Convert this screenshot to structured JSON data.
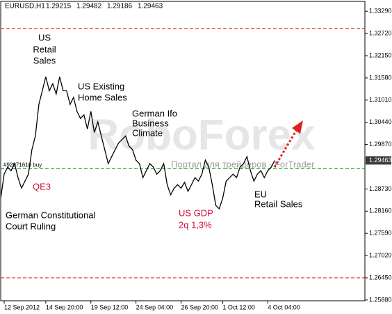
{
  "chart_data": {
    "type": "line",
    "title": "EURUSD,H1",
    "ohlc": [
      1.29215,
      1.29482,
      1.29186,
      1.29463
    ],
    "series": [
      {
        "color": "#000000",
        "x": [
          0,
          1,
          2,
          3,
          4,
          5,
          6,
          7,
          8,
          9,
          10,
          11,
          12,
          13,
          14,
          15,
          16,
          17,
          18,
          19,
          20,
          21,
          22,
          23,
          24,
          25,
          26,
          27,
          28,
          29,
          30,
          31,
          32,
          33,
          34,
          35,
          36,
          37,
          38,
          39,
          40,
          41,
          42,
          43,
          44,
          45,
          46,
          47,
          48,
          49,
          50,
          51,
          52,
          53,
          54,
          55,
          56,
          57,
          58,
          59,
          60,
          61,
          62,
          63,
          64,
          65,
          66,
          67,
          68,
          69,
          70,
          71,
          72,
          73,
          74,
          75,
          76,
          77,
          78,
          79
        ],
        "values": [
          1.2849,
          1.2911,
          1.2929,
          1.292,
          1.2938,
          1.2902,
          1.2875,
          1.2893,
          1.2911,
          1.2974,
          1.3009,
          1.309,
          1.3125,
          1.3161,
          1.3125,
          1.3143,
          1.3117,
          1.3161,
          1.3125,
          1.3125,
          1.309,
          1.3108,
          1.3072,
          1.3054,
          1.3063,
          1.3027,
          1.3072,
          1.3018,
          1.3045,
          1.3009,
          1.2974,
          1.2938,
          1.2956,
          1.2974,
          1.2991,
          1.3,
          1.3009,
          1.2983,
          1.2974,
          1.2947,
          1.2938,
          1.2902,
          1.292,
          1.2938,
          1.2929,
          1.2911,
          1.292,
          1.2938,
          1.2884,
          1.2858,
          1.2875,
          1.2884,
          1.2875,
          1.289,
          1.2867,
          1.2884,
          1.2902,
          1.2893,
          1.2911,
          1.2947,
          1.2929,
          1.2884,
          1.2831,
          1.2822,
          1.2849,
          1.2893,
          1.2902,
          1.2911,
          1.2902,
          1.2929,
          1.2938,
          1.2956,
          1.292,
          1.2893,
          1.2911,
          1.292,
          1.2902,
          1.292,
          1.2929,
          1.2946
        ]
      }
    ],
    "xlim": [
      0,
      105
    ],
    "xticks": [
      {
        "value": 1,
        "label": "12 Sep 2012"
      },
      {
        "value": 13,
        "label": "14 Sep 20:00"
      },
      {
        "value": 26,
        "label": "19 Sep 12:00"
      },
      {
        "value": 39,
        "label": "24 Sep 04:00"
      },
      {
        "value": 52,
        "label": "26 Sep 20:00"
      },
      {
        "value": 64,
        "label": "1 Oct 12:00"
      },
      {
        "value": 77,
        "label": "4 Oct 04:00"
      }
    ],
    "ylim": [
      1.2586,
      1.3358
    ],
    "yticks": [
      {
        "value": 1.3329,
        "label": "1.33290"
      },
      {
        "value": 1.3272,
        "label": "1.32720"
      },
      {
        "value": 1.3215,
        "label": "1.32150"
      },
      {
        "value": 1.3158,
        "label": "1.31580"
      },
      {
        "value": 1.3101,
        "label": "1.31010"
      },
      {
        "value": 1.3044,
        "label": "1.30440"
      },
      {
        "value": 1.2987,
        "label": "1.29870"
      },
      {
        "value": 1.2873,
        "label": "1.28730"
      },
      {
        "value": 1.2816,
        "label": "1.28160"
      },
      {
        "value": 1.2759,
        "label": "1.27590"
      },
      {
        "value": 1.2702,
        "label": "1.27020"
      },
      {
        "value": 1.2645,
        "label": "1.26450"
      },
      {
        "value": 1.2588,
        "label": "1.25880"
      }
    ],
    "current_price": 1.29463,
    "levels": [
      {
        "value": 1.3285,
        "color": "#e00000"
      },
      {
        "value": 1.2645,
        "color": "#e00000"
      },
      {
        "value": 1.2925,
        "color": "#008000",
        "label": "#92071616 buy"
      }
    ],
    "annotations": [
      {
        "lines": [
          "US",
          "Retail",
          "Sales"
        ],
        "color": "#000000"
      },
      {
        "lines": [
          "US Existing",
          "Home Sales"
        ],
        "color": "#000000"
      },
      {
        "lines": [
          "German Ifo",
          "Business",
          "Climate"
        ],
        "color": "#000000"
      },
      {
        "lines": [
          "QE3"
        ],
        "color": "#d0103a"
      },
      {
        "lines": [
          "German Constitutional",
          "Court Ruling"
        ],
        "color": "#000000"
      },
      {
        "lines": [
          "US GDP",
          "2q 1,3%"
        ],
        "color": "#d0103a"
      },
      {
        "lines": [
          "EU",
          "Retail Sales"
        ],
        "color": "#000000"
      }
    ],
    "watermark": [
      "RoboForex",
      "Портал для трейдеров - ForTrader"
    ]
  }
}
